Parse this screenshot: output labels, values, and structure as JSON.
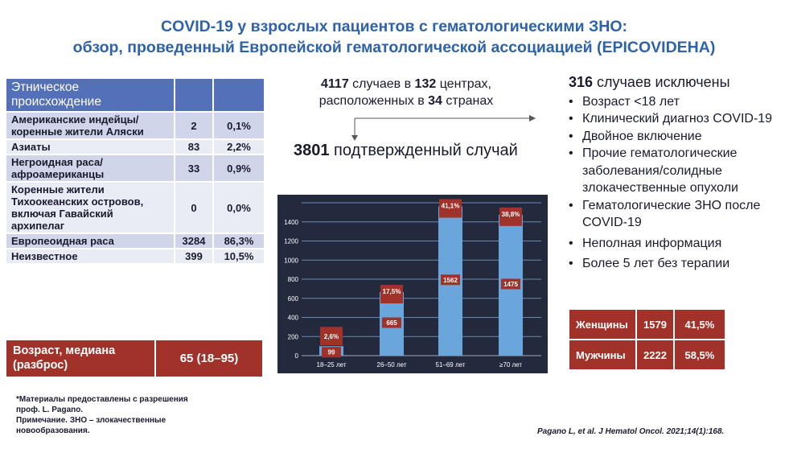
{
  "title": {
    "line1": "COVID-19 у взрослых пациентов с гематологическими ЗНО:",
    "line2": "обзор, проведенный Европейской гематологической ассоциацией (EPICOVIDEHA)"
  },
  "ethnicity": {
    "header": "Этническое происхождение",
    "rows": [
      {
        "label": "Американские индейцы/коренные жители Аляски",
        "n": "2",
        "pct": "0,1%"
      },
      {
        "label": "Азиаты",
        "n": "83",
        "pct": "2,2%"
      },
      {
        "label": "Негроидная раса/афроамериканцы",
        "n": "33",
        "pct": "0,9%"
      },
      {
        "label": "Коренные жители Тихоокеанских островов, включая Гавайский архипелаг",
        "n": "0",
        "pct": "0,0%"
      },
      {
        "label": "Европеоидная раса",
        "n": "3284",
        "pct": "86,3%"
      },
      {
        "label": "Неизвестное",
        "n": "399",
        "pct": "10,5%"
      }
    ]
  },
  "age": {
    "label": "Возраст, медиана (разброс)",
    "value": "65  (18–95)"
  },
  "footnote": {
    "l1": "*Материалы предоставлены с разрешения",
    "l2": "проф. L. Pagano.",
    "l3": "Примечание. ЗНО – злокачественные",
    "l4": "новообразования."
  },
  "citation": "Pagano L, et al. J Hematol Oncol. 2021;14(1):168.",
  "cases": {
    "n": "4117",
    "t1": " случаев в ",
    "centers": "132",
    "t2": " центрах,",
    "t3": "расположенных в ",
    "countries": "34",
    "t4": " странах"
  },
  "confirmed": {
    "n": "3801",
    "t": " подтвержденный случай"
  },
  "excluded": {
    "n": "316",
    "t": " случаев исключены",
    "items": [
      "Возраст <18 лет",
      "Клинический диагноз COVID-19",
      "Двойное включение",
      "Прочие гематологические заболевания/солидные злокачественные опухоли",
      "Гематологические ЗНО после COVID-19",
      "Неполная информация",
      "Более 5 лет без терапии"
    ]
  },
  "gender": [
    {
      "label": "Женщины",
      "n": "1579",
      "pct": "41,5%"
    },
    {
      "label": "Мужчины",
      "n": "2222",
      "pct": "58,5%"
    }
  ],
  "chart_data": {
    "type": "bar",
    "categories": [
      "18–25 лет",
      "26–50 лет",
      "51–69 лет",
      "≥70 лет"
    ],
    "values": [
      99,
      665,
      1562,
      1475
    ],
    "percent_labels": [
      "2,6%",
      "17,5%",
      "41,1%",
      "38,8%"
    ],
    "value_labels": [
      "99",
      "665",
      "1562",
      "1475"
    ],
    "yticks": [
      "0",
      "200",
      "400",
      "600",
      "800",
      "1000",
      "1200",
      "1400"
    ],
    "ylim": [
      0,
      1600
    ],
    "grid": true,
    "colors": {
      "bg": "#232a3e",
      "bar": "#6aa6dc",
      "label": "#a0322a"
    }
  }
}
